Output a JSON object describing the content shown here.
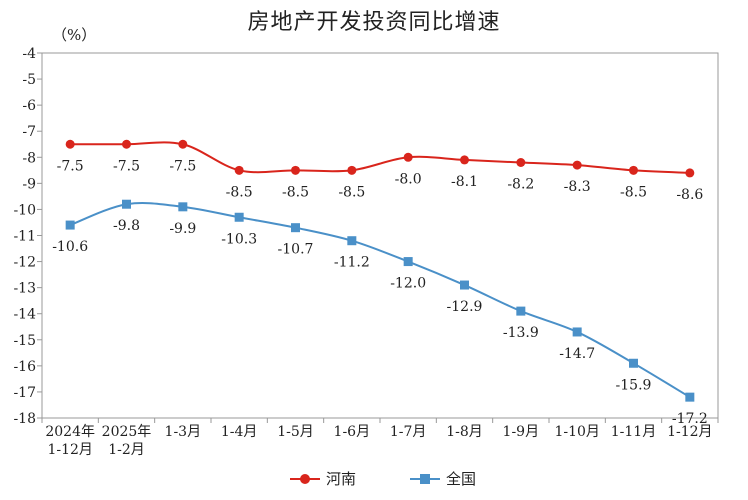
{
  "chart_data": {
    "type": "line",
    "title": "房地产开发投资同比增速",
    "unit_label": "（%）",
    "categories": [
      [
        "2024年",
        "1-12月"
      ],
      [
        "2025年",
        "1-2月"
      ],
      [
        "1-3月"
      ],
      [
        "1-4月"
      ],
      [
        "1-5月"
      ],
      [
        "1-6月"
      ],
      [
        "1-7月"
      ],
      [
        "1-8月"
      ],
      [
        "1-9月"
      ],
      [
        "1-10月"
      ],
      [
        "1-11月"
      ],
      [
        "1-12月"
      ]
    ],
    "ylim": [
      -18,
      -4
    ],
    "yticks": [
      -4,
      -5,
      -6,
      -7,
      -8,
      -9,
      -10,
      -11,
      -12,
      -13,
      -14,
      -15,
      -16,
      -17,
      -18
    ],
    "grid": false,
    "legend_position": "bottom",
    "series": [
      {
        "name": "河南",
        "color": "#d9251c",
        "marker": "circle",
        "values": [
          -7.5,
          -7.5,
          -7.5,
          -8.5,
          -8.5,
          -8.5,
          -8.0,
          -8.1,
          -8.2,
          -8.3,
          -8.5,
          -8.6
        ],
        "labels": [
          "-7.5",
          "-7.5",
          "-7.5",
          "-8.5",
          "-8.5",
          "-8.5",
          "-8.0",
          "-8.1",
          "-8.2",
          "-8.3",
          "-8.5",
          "-8.6"
        ]
      },
      {
        "name": "全国",
        "color": "#4a90c8",
        "marker": "square",
        "values": [
          -10.6,
          -9.8,
          -9.9,
          -10.3,
          -10.7,
          -11.2,
          -12.0,
          -12.9,
          -13.9,
          -14.7,
          -15.9,
          -17.2
        ],
        "labels": [
          "-10.6",
          "-9.8",
          "-9.9",
          "-10.3",
          "-10.7",
          "-11.2",
          "-12.0",
          "-12.9",
          "-13.9",
          "-14.7",
          "-15.9",
          "-17.2"
        ]
      }
    ]
  }
}
